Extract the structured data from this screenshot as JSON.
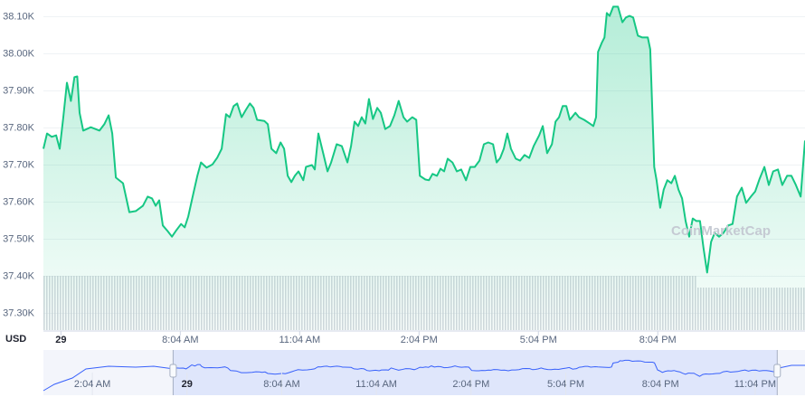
{
  "chart_data": {
    "type": "line",
    "currency_label": "USD",
    "watermark": "CoinMarketCap",
    "x": [
      4.63,
      4.72,
      4.84,
      4.95,
      5.04,
      5.13,
      5.22,
      5.32,
      5.41,
      5.48,
      5.54,
      5.63,
      5.82,
      6.04,
      6.16,
      6.27,
      6.36,
      6.45,
      6.63,
      6.79,
      6.95,
      7.13,
      7.25,
      7.36,
      7.45,
      7.54,
      7.63,
      7.75,
      7.86,
      7.97,
      8.09,
      8.18,
      8.27,
      8.38,
      8.5,
      8.59,
      8.73,
      8.88,
      9.0,
      9.11,
      9.22,
      9.31,
      9.41,
      9.5,
      9.61,
      9.72,
      9.82,
      9.91,
      10.0,
      10.18,
      10.27,
      10.36,
      10.48,
      10.59,
      10.68,
      10.77,
      10.86,
      10.95,
      11.04,
      11.16,
      11.23,
      11.38,
      11.45,
      11.54,
      11.66,
      11.77,
      11.86,
      12.0,
      12.13,
      12.27,
      12.36,
      12.45,
      12.54,
      12.63,
      12.72,
      12.81,
      12.91,
      13.02,
      13.11,
      13.22,
      13.34,
      13.45,
      13.56,
      13.68,
      13.77,
      13.9,
      14.0,
      14.09,
      14.23,
      14.32,
      14.41,
      14.52,
      14.61,
      14.7,
      14.79,
      14.91,
      15.02,
      15.13,
      15.25,
      15.36,
      15.47,
      15.59,
      15.7,
      15.81,
      15.93,
      16.02,
      16.11,
      16.2,
      16.29,
      16.38,
      16.5,
      16.61,
      16.72,
      16.84,
      16.95,
      17.09,
      17.18,
      17.29,
      17.41,
      17.5,
      17.59,
      17.68,
      17.77,
      17.86,
      18.0,
      18.09,
      18.22,
      18.36,
      18.45,
      18.52,
      18.57,
      18.66,
      18.73,
      18.79,
      18.86,
      18.95,
      19.07,
      19.18,
      19.27,
      19.36,
      19.45,
      19.57,
      19.68,
      19.82,
      19.88,
      19.98,
      20.04,
      20.13,
      20.22,
      20.31,
      20.41,
      20.5,
      20.59,
      20.68,
      20.77,
      20.86,
      20.95,
      21.04,
      21.13,
      21.22,
      21.31,
      21.41,
      21.5,
      21.61,
      21.72,
      21.84,
      21.95,
      22.06,
      22.18,
      22.29,
      22.41,
      22.52,
      22.63,
      22.75,
      22.86,
      22.97,
      23.09,
      23.2,
      23.32,
      23.43,
      23.54,
      23.66,
      23.77
    ],
    "series": [
      {
        "color": "#16c784",
        "values": [
          37744,
          37785,
          37776,
          37780,
          37744,
          37829,
          37922,
          37873,
          37937,
          37939,
          37841,
          37793,
          37802,
          37793,
          37810,
          37834,
          37785,
          37666,
          37651,
          37573,
          37576,
          37590,
          37615,
          37610,
          37590,
          37605,
          37537,
          37522,
          37507,
          37524,
          37541,
          37532,
          37561,
          37615,
          37671,
          37707,
          37693,
          37702,
          37720,
          37744,
          37837,
          37829,
          37859,
          37866,
          37829,
          37849,
          37866,
          37854,
          37822,
          37819,
          37810,
          37744,
          37732,
          37761,
          37744,
          37671,
          37654,
          37671,
          37683,
          37659,
          37695,
          37700,
          37688,
          37785,
          37732,
          37683,
          37707,
          37756,
          37751,
          37707,
          37751,
          37817,
          37805,
          37829,
          37812,
          37878,
          37824,
          37854,
          37841,
          37797,
          37805,
          37834,
          37873,
          37829,
          37817,
          37829,
          37822,
          37671,
          37661,
          37659,
          37676,
          37671,
          37690,
          37683,
          37717,
          37707,
          37683,
          37688,
          37659,
          37695,
          37695,
          37712,
          37756,
          37761,
          37756,
          37707,
          37719,
          37744,
          37785,
          37744,
          37717,
          37712,
          37727,
          37719,
          37751,
          37780,
          37805,
          37732,
          37756,
          37817,
          37829,
          37859,
          37859,
          37822,
          37841,
          37829,
          37822,
          37812,
          37805,
          37829,
          38005,
          38029,
          38044,
          38110,
          38102,
          38127,
          38127,
          38085,
          38098,
          38102,
          38098,
          38049,
          38044,
          38044,
          38012,
          37695,
          37659,
          37585,
          37634,
          37659,
          37651,
          37671,
          37634,
          37610,
          37549,
          37507,
          37556,
          37549,
          37549,
          37476,
          37410,
          37493,
          37517,
          37507,
          37517,
          37537,
          37541,
          37615,
          37639,
          37598,
          37615,
          37629,
          37663,
          37695,
          37646,
          37683,
          37688,
          37646,
          37671,
          37671,
          37646,
          37615,
          37766
        ]
      }
    ],
    "xlim": [
      4.63,
      23.77
    ],
    "xticks": [
      {
        "value": 5.07,
        "label": "29"
      },
      {
        "value": 8.07,
        "label": "8:04 AM"
      },
      {
        "value": 11.07,
        "label": "11:04 AM"
      },
      {
        "value": 14.07,
        "label": "2:04 PM"
      },
      {
        "value": 17.07,
        "label": "5:04 PM"
      },
      {
        "value": 20.07,
        "label": "8:04 PM"
      }
    ],
    "ylim": [
      37255,
      38145
    ],
    "yticks": [
      {
        "value": 37300,
        "label": "37.30K"
      },
      {
        "value": 37400,
        "label": "37.40K"
      },
      {
        "value": 37500,
        "label": "37.50K"
      },
      {
        "value": 37600,
        "label": "37.60K"
      },
      {
        "value": 37700,
        "label": "37.70K"
      },
      {
        "value": 37800,
        "label": "37.80K"
      },
      {
        "value": 37900,
        "label": "37.90K"
      },
      {
        "value": 38000,
        "label": "38.00K"
      },
      {
        "value": 38100,
        "label": "38.10K"
      }
    ],
    "grid": true,
    "navigator": {
      "xlim": [
        0.52,
        24.65
      ],
      "xticks": [
        {
          "value": 2.07,
          "label": "2:04 AM"
        },
        {
          "value": 5.07,
          "label": "29"
        },
        {
          "value": 8.07,
          "label": "8:04 AM"
        },
        {
          "value": 11.07,
          "label": "11:04 AM"
        },
        {
          "value": 14.07,
          "label": "2:04 PM"
        },
        {
          "value": 17.07,
          "label": "5:04 PM"
        },
        {
          "value": 20.07,
          "label": "8:04 PM"
        },
        {
          "value": 23.07,
          "label": "11:04 PM"
        }
      ]
    }
  }
}
